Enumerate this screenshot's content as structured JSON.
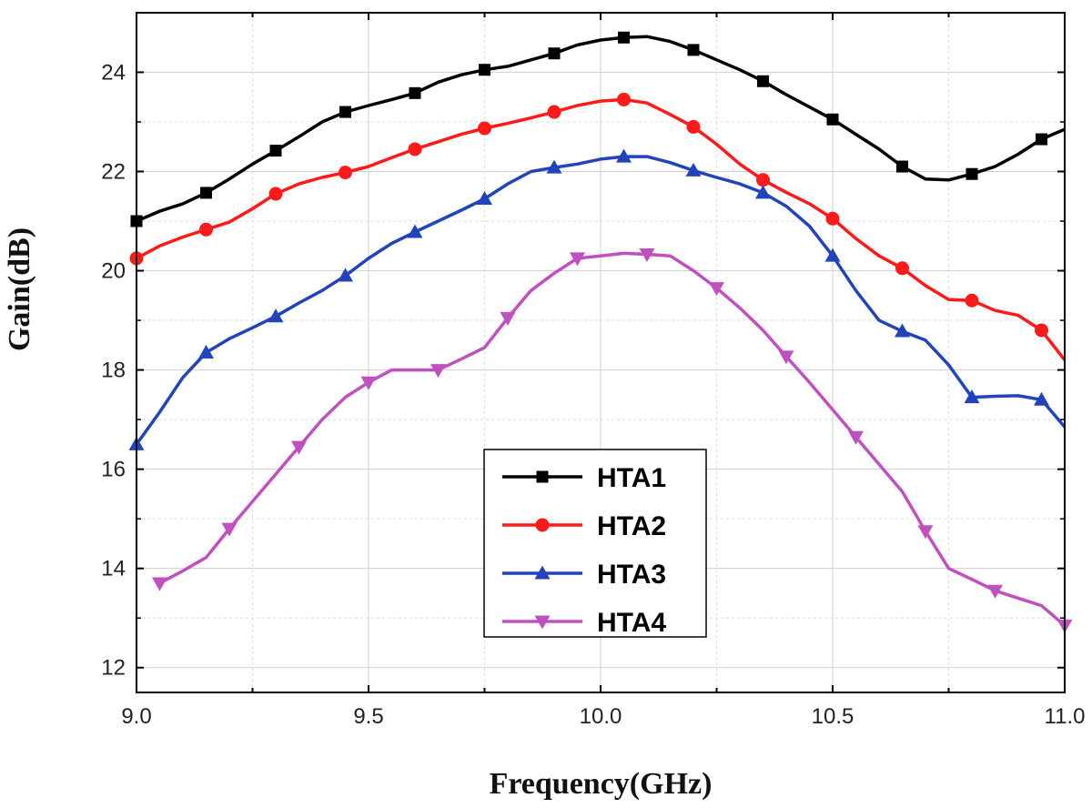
{
  "chart_data": {
    "type": "line",
    "title": "",
    "xlabel": "Frequency(GHz)",
    "ylabel": "Gain(dB)",
    "xlim": [
      9.0,
      11.0
    ],
    "ylim": [
      11.5,
      25.2
    ],
    "xticks": [
      9.0,
      9.5,
      10.0,
      10.5,
      11.0
    ],
    "xtick_labels": [
      "9.0",
      "9.5",
      "10.0",
      "10.5",
      "11.0"
    ],
    "yticks": [
      12,
      14,
      16,
      18,
      20,
      22,
      24
    ],
    "ytick_labels": [
      "12",
      "14",
      "16",
      "18",
      "20",
      "22",
      "24"
    ],
    "grid": true,
    "legend_position": "bottom-center",
    "series": [
      {
        "name": "HTA1",
        "color": "#000000",
        "marker": "square",
        "x": [
          9.0,
          9.05,
          9.1,
          9.15,
          9.2,
          9.25,
          9.3,
          9.35,
          9.4,
          9.45,
          9.5,
          9.55,
          9.6,
          9.65,
          9.7,
          9.75,
          9.8,
          9.85,
          9.9,
          9.95,
          10.0,
          10.05,
          10.1,
          10.15,
          10.2,
          10.25,
          10.3,
          10.35,
          10.4,
          10.45,
          10.5,
          10.55,
          10.6,
          10.65,
          10.7,
          10.75,
          10.8,
          10.85,
          10.9,
          10.95,
          11.0
        ],
        "y": [
          21.0,
          21.2,
          21.35,
          21.57,
          21.85,
          22.15,
          22.42,
          22.7,
          23.0,
          23.2,
          23.33,
          23.45,
          23.58,
          23.8,
          23.95,
          24.05,
          24.12,
          24.25,
          24.38,
          24.55,
          24.65,
          24.7,
          24.72,
          24.62,
          24.45,
          24.25,
          24.05,
          23.82,
          23.55,
          23.3,
          23.05,
          22.75,
          22.45,
          22.1,
          21.85,
          21.83,
          21.95,
          22.1,
          22.35,
          22.65,
          22.85
        ],
        "marker_every": 3
      },
      {
        "name": "HTA2",
        "color": "#ff1a1a",
        "marker": "circle",
        "x": [
          9.0,
          9.05,
          9.1,
          9.15,
          9.2,
          9.25,
          9.3,
          9.35,
          9.4,
          9.45,
          9.5,
          9.55,
          9.6,
          9.65,
          9.7,
          9.75,
          9.8,
          9.85,
          9.9,
          9.95,
          10.0,
          10.05,
          10.1,
          10.15,
          10.2,
          10.25,
          10.3,
          10.35,
          10.4,
          10.45,
          10.5,
          10.55,
          10.6,
          10.65,
          10.7,
          10.75,
          10.8,
          10.85,
          10.9,
          10.95,
          11.0
        ],
        "y": [
          20.25,
          20.5,
          20.68,
          20.83,
          20.98,
          21.25,
          21.55,
          21.75,
          21.88,
          21.98,
          22.1,
          22.28,
          22.45,
          22.6,
          22.75,
          22.87,
          22.97,
          23.08,
          23.2,
          23.33,
          23.42,
          23.45,
          23.38,
          23.15,
          22.9,
          22.55,
          22.15,
          21.83,
          21.58,
          21.35,
          21.05,
          20.65,
          20.3,
          20.05,
          19.7,
          19.42,
          19.4,
          19.2,
          19.1,
          18.8,
          18.2
        ],
        "marker_every": 3
      },
      {
        "name": "HTA3",
        "color": "#2244bb",
        "marker": "triangle-up",
        "x": [
          9.0,
          9.05,
          9.1,
          9.15,
          9.2,
          9.25,
          9.3,
          9.35,
          9.4,
          9.45,
          9.5,
          9.55,
          9.6,
          9.65,
          9.7,
          9.75,
          9.8,
          9.85,
          9.9,
          9.95,
          10.0,
          10.05,
          10.1,
          10.15,
          10.2,
          10.25,
          10.3,
          10.35,
          10.4,
          10.45,
          10.5,
          10.55,
          10.6,
          10.65,
          10.7,
          10.75,
          10.8,
          10.85,
          10.9,
          10.95,
          11.0
        ],
        "y": [
          16.5,
          17.15,
          17.85,
          18.35,
          18.63,
          18.85,
          19.08,
          19.35,
          19.6,
          19.9,
          20.25,
          20.55,
          20.78,
          21.0,
          21.22,
          21.45,
          21.75,
          22.0,
          22.08,
          22.15,
          22.25,
          22.3,
          22.3,
          22.18,
          22.02,
          21.88,
          21.75,
          21.57,
          21.3,
          20.9,
          20.3,
          19.6,
          19.0,
          18.78,
          18.6,
          18.1,
          17.45,
          17.47,
          17.48,
          17.4,
          16.85
        ],
        "marker_every": 3
      },
      {
        "name": "HTA4",
        "color": "#c050c0",
        "marker": "triangle-down",
        "x": [
          9.05,
          9.1,
          9.15,
          9.2,
          9.25,
          9.3,
          9.35,
          9.4,
          9.45,
          9.5,
          9.55,
          9.6,
          9.65,
          9.7,
          9.75,
          9.8,
          9.85,
          9.9,
          9.95,
          10.0,
          10.05,
          10.1,
          10.15,
          10.2,
          10.25,
          10.3,
          10.35,
          10.4,
          10.45,
          10.5,
          10.55,
          10.6,
          10.65,
          10.7,
          10.75,
          10.8,
          10.85,
          10.9,
          10.95,
          11.0
        ],
        "y": [
          13.7,
          13.95,
          14.22,
          14.8,
          15.35,
          15.9,
          16.45,
          17.0,
          17.45,
          17.75,
          18.0,
          18.0,
          18.0,
          18.22,
          18.45,
          19.05,
          19.6,
          19.95,
          20.25,
          20.3,
          20.35,
          20.33,
          20.3,
          20.0,
          19.65,
          19.25,
          18.8,
          18.27,
          17.75,
          17.2,
          16.65,
          16.1,
          15.55,
          14.75,
          14.0,
          13.78,
          13.55,
          13.4,
          13.25,
          12.85
        ],
        "marker_every": 3
      }
    ]
  }
}
